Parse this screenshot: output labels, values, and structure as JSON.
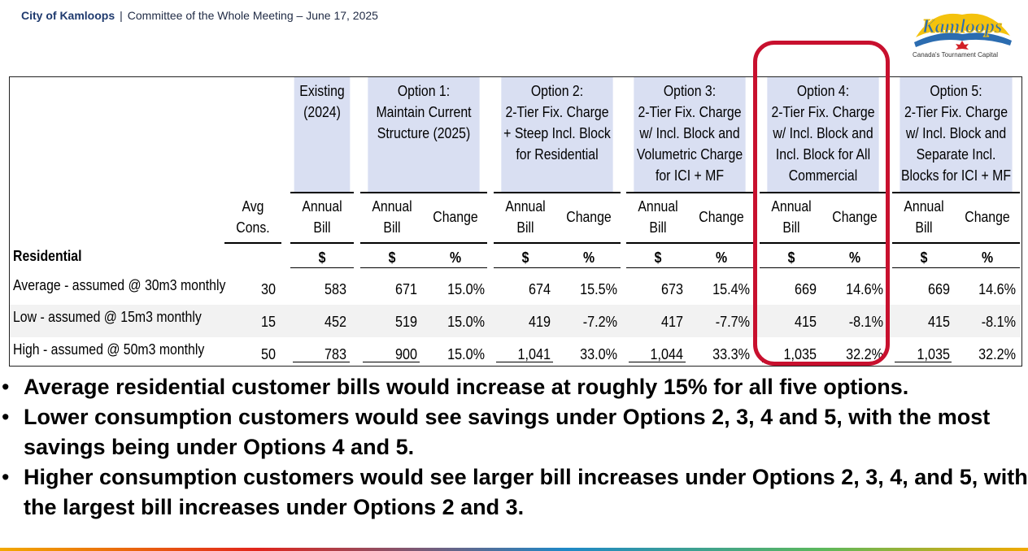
{
  "header": {
    "org": "City of Kamloops",
    "separator": "|",
    "meeting": "Committee of the Whole Meeting – June 17, 2025"
  },
  "logo": {
    "wordmark": "Kamloops",
    "tagline": "Canada's Tournament Capital",
    "colors": {
      "yellow": "#f4c20d",
      "red": "#d21f26",
      "blue": "#2b6cb0"
    }
  },
  "table": {
    "groups": [
      {
        "lines": [
          "Existing",
          "(2024)"
        ]
      },
      {
        "lines": [
          "Option 1:",
          "Maintain Current",
          "Structure (2025)"
        ]
      },
      {
        "lines": [
          "Option 2:",
          "2-Tier Fix. Charge",
          "+ Steep Incl. Block",
          "for Residential"
        ]
      },
      {
        "lines": [
          "Option 3:",
          "2-Tier Fix. Charge",
          "w/ Incl. Block and",
          "Volumetric Charge",
          "for ICI + MF"
        ]
      },
      {
        "lines": [
          "Option 4:",
          "2-Tier Fix. Charge",
          "w/ Incl. Block and",
          "Incl. Block for All",
          "Commercial"
        ]
      },
      {
        "lines": [
          "Option 5:",
          "2-Tier Fix. Charge",
          "w/ Incl. Block and",
          "Separate Incl.",
          "Blocks for ICI + MF"
        ]
      }
    ],
    "subheaders": {
      "avg": [
        "Avg",
        "Cons."
      ],
      "annual": [
        "Annual",
        "Bill"
      ],
      "change": "Change"
    },
    "section_label": "Residential",
    "units": {
      "dollar": "$",
      "percent": "%"
    },
    "rows": [
      {
        "label": "Average - assumed @ 30m3 monthly",
        "cons": "30",
        "existing": "583",
        "o1": [
          "671",
          "15.0%"
        ],
        "o2": [
          "674",
          "15.5%"
        ],
        "o3": [
          "673",
          "15.4%"
        ],
        "o4": [
          "669",
          "14.6%"
        ],
        "o5": [
          "669",
          "14.6%"
        ]
      },
      {
        "label": "Low - assumed @ 15m3 monthly",
        "cons": "15",
        "existing": "452",
        "o1": [
          "519",
          "15.0%"
        ],
        "o2": [
          "419",
          "-7.2%"
        ],
        "o3": [
          "417",
          "-7.7%"
        ],
        "o4": [
          "415",
          "-8.1%"
        ],
        "o5": [
          "415",
          "-8.1%"
        ]
      },
      {
        "label": "High - assumed @ 50m3 monthly",
        "cons": "50",
        "existing": "783",
        "o1": [
          "900",
          "15.0%"
        ],
        "o2": [
          "1,041",
          "33.0%"
        ],
        "o3": [
          "1,044",
          "33.3%"
        ],
        "o4": [
          "1,035",
          "32.2%"
        ],
        "o5": [
          "1,035",
          "32.2%"
        ]
      }
    ],
    "highlight_color": "#c8102e",
    "header_fill": "#d9dff2"
  },
  "bullets": [
    {
      "dot": "•",
      "text": "Average residential customer bills would increase at roughly 15% for all five options."
    },
    {
      "dot": "•",
      "text": "Lower consumption customers would see savings under Options 2, 3, 4 and 5, with the most savings being under Options 4 and 5."
    },
    {
      "dot": "•",
      "text": "Higher consumption customers would see larger bill increases under Options 2, 3, 4, and 5, with the largest bill increases under Options 2 and 3."
    }
  ]
}
